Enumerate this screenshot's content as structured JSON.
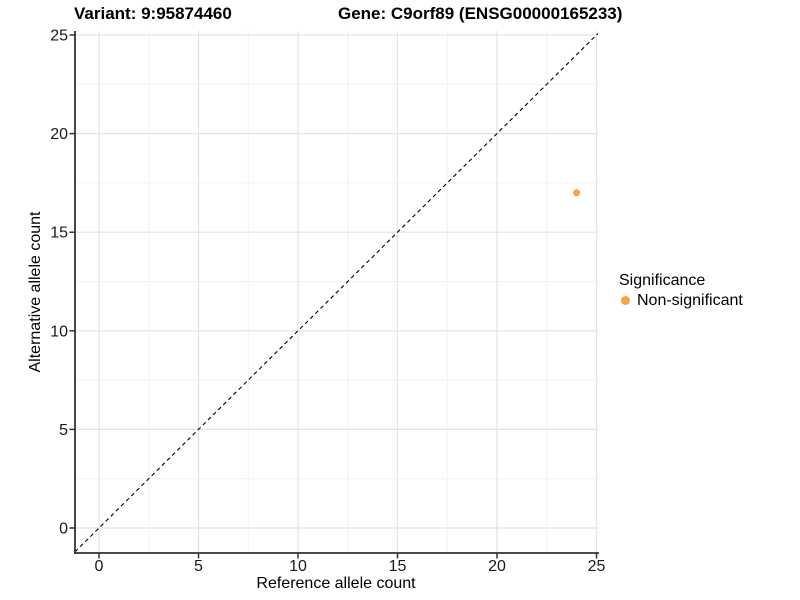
{
  "chart_data": {
    "type": "scatter",
    "title_left": "Variant: 9:95874460",
    "title_right": "Gene: C9orf89 (ENSG00000165233)",
    "xlabel": "Reference allele count",
    "ylabel": "Alternative allele count",
    "xlim": [
      -1.2,
      25.1
    ],
    "ylim": [
      -1.2,
      25.1
    ],
    "xticks": [
      0,
      5,
      10,
      15,
      20,
      25
    ],
    "yticks": [
      0,
      5,
      10,
      15,
      20,
      25
    ],
    "minor_ticks": [
      2.5,
      7.5,
      12.5,
      17.5,
      22.5
    ],
    "grid": true,
    "identity_line": {
      "slope": 1,
      "intercept": 0,
      "style": "dashed",
      "color": "#000000"
    },
    "points": [
      {
        "x": 24,
        "y": 17,
        "series": "Non-significant"
      }
    ],
    "legend": {
      "position": "right",
      "title": "Significance",
      "entries": [
        {
          "label": "Non-significant",
          "color": "#F9A242"
        }
      ]
    },
    "colors": {
      "point": "#F9A242",
      "grid_major": "#e3e3e3",
      "grid_minor": "#f1f1f1",
      "axis_line": "#333333",
      "tick_label": "#1a1a1a"
    }
  }
}
